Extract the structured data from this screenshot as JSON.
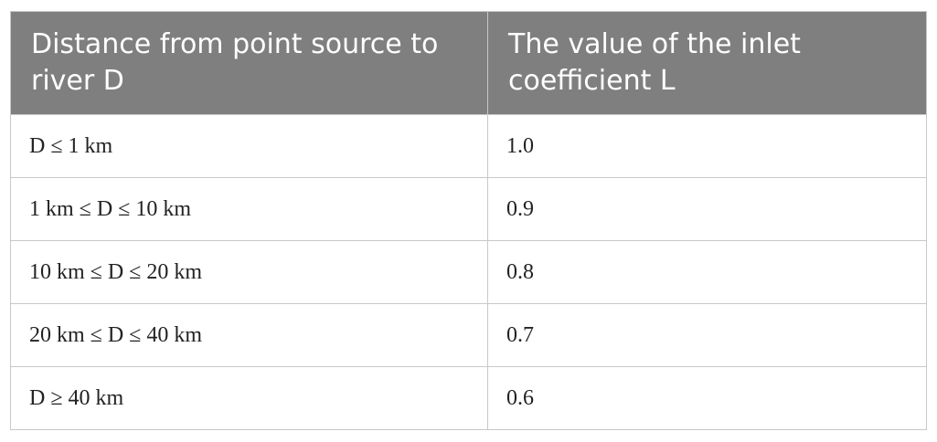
{
  "table": {
    "header": [
      "Distance from point source to river D",
      "The value of the inlet coefficient L"
    ],
    "rows": [
      [
        "D ≤ 1 km",
        "1.0"
      ],
      [
        "1 km ≤ D ≤ 10 km",
        "0.9"
      ],
      [
        "10 km ≤ D ≤ 20 km",
        "0.8"
      ],
      [
        "20 km ≤ D ≤ 40 km",
        "0.7"
      ],
      [
        "D ≥ 40 km",
        "0.6"
      ]
    ]
  }
}
